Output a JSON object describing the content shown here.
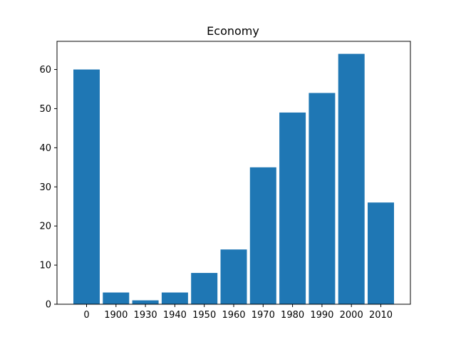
{
  "chart_data": {
    "type": "bar",
    "title": "Economy",
    "xlabel": "",
    "ylabel": "",
    "categories": [
      "0",
      "1900",
      "1930",
      "1940",
      "1950",
      "1960",
      "1970",
      "1980",
      "1990",
      "2000",
      "2010"
    ],
    "values": [
      60,
      3,
      1,
      3,
      8,
      14,
      35,
      49,
      54,
      64,
      26
    ],
    "ylim": [
      0,
      67.2
    ],
    "yticks": [
      0,
      10,
      20,
      30,
      40,
      50,
      60
    ],
    "grid": false,
    "legend": "none",
    "colors": {
      "bar": "#1f77b4",
      "axes": "#000000",
      "background": "#ffffff"
    }
  }
}
